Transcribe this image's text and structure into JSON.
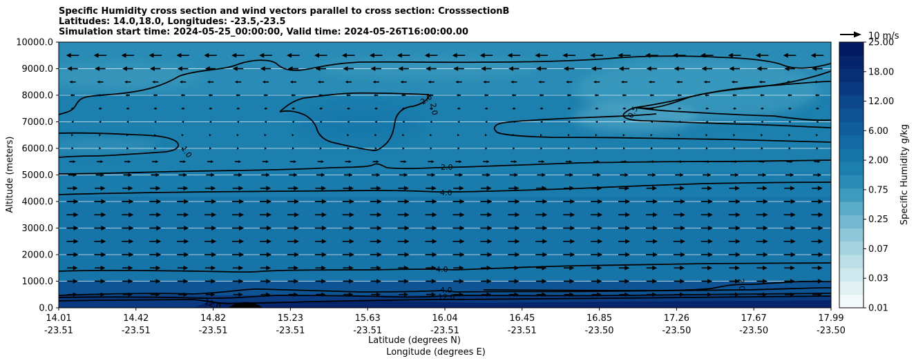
{
  "title_lines": [
    "Specific Humidity cross section and wind vectors parallel to cross section: CrosssectionB",
    "Latitudes: 14.0,18.0, Longitudes: -23.5,-23.5",
    "Simulation start time: 2024-05-25_00:00:00, Valid time: 2024-05-26T16:00:00.00"
  ],
  "chart_data": {
    "type": "heatmap",
    "plot_kind": "filled contour cross-section with wind vectors",
    "ylabel": "Altitude (meters)",
    "xlabel": "Latitude (degrees N)",
    "xlabel2": "Longitude (degrees E)",
    "ylim": [
      0,
      10000
    ],
    "yticks": [
      "0.0",
      "1000.0",
      "2000.0",
      "3000.0",
      "4000.0",
      "5000.0",
      "6000.0",
      "7000.0",
      "8000.0",
      "9000.0",
      "10000.0"
    ],
    "xticks_lat": [
      "14.01",
      "14.42",
      "14.82",
      "15.23",
      "15.63",
      "16.04",
      "16.45",
      "16.85",
      "17.26",
      "17.67",
      "17.99"
    ],
    "xticks_lon": [
      "-23.51",
      "-23.51",
      "-23.51",
      "-23.51",
      "-23.51",
      "-23.51",
      "-23.51",
      "-23.50",
      "-23.50",
      "-23.50",
      "-23.50"
    ],
    "grid": "horizontal",
    "colorbar": {
      "label": "Specific Humidity g/kg",
      "ticks": [
        "0.01",
        "0.03",
        "0.07",
        "0.25",
        "0.75",
        "2.00",
        "6.00",
        "12.00",
        "18.00",
        "25.00"
      ],
      "colors": [
        "#f3fafb",
        "#e1f0f3",
        "#cfe8ee",
        "#bcdfe8",
        "#a8d4e1",
        "#8fc7d8",
        "#74b9d0",
        "#5aabc8",
        "#3f9bbd",
        "#2a8cb6",
        "#1c7fae",
        "#1674a9",
        "#1369a3",
        "#105e9c",
        "#0e5394",
        "#0c478a",
        "#0a3b80",
        "#082f75",
        "#06246b",
        "#041a60"
      ]
    },
    "quiver_key": {
      "label": "10 m/s",
      "speed": 10
    },
    "contour_labels": [
      "2.0",
      "2.0",
      "0.5",
      "1.0",
      "2.0",
      "4.0",
      "4.0",
      "2.0",
      "4.0",
      "12.0",
      "12.0"
    ],
    "wind_profile": [
      {
        "altitude": 9500,
        "u": -6
      },
      {
        "altitude": 9000,
        "u": -5
      },
      {
        "altitude": 8500,
        "u": -3
      },
      {
        "altitude": 8000,
        "u": -2
      },
      {
        "altitude": 7500,
        "u": -1.5
      },
      {
        "altitude": 7000,
        "u": -1
      },
      {
        "altitude": 6500,
        "u": 0.8
      },
      {
        "altitude": 6000,
        "u": 1
      },
      {
        "altitude": 5500,
        "u": 3
      },
      {
        "altitude": 5000,
        "u": 4
      },
      {
        "altitude": 4500,
        "u": 5
      },
      {
        "altitude": 4000,
        "u": 5.5
      },
      {
        "altitude": 3500,
        "u": 5.5
      },
      {
        "altitude": 3000,
        "u": 5.5
      },
      {
        "altitude": 2500,
        "u": 5.5
      },
      {
        "altitude": 2000,
        "u": 5.5
      },
      {
        "altitude": 1500,
        "u": 5
      },
      {
        "altitude": 1000,
        "u": 5
      },
      {
        "altitude": 500,
        "u": 4.5
      }
    ]
  }
}
